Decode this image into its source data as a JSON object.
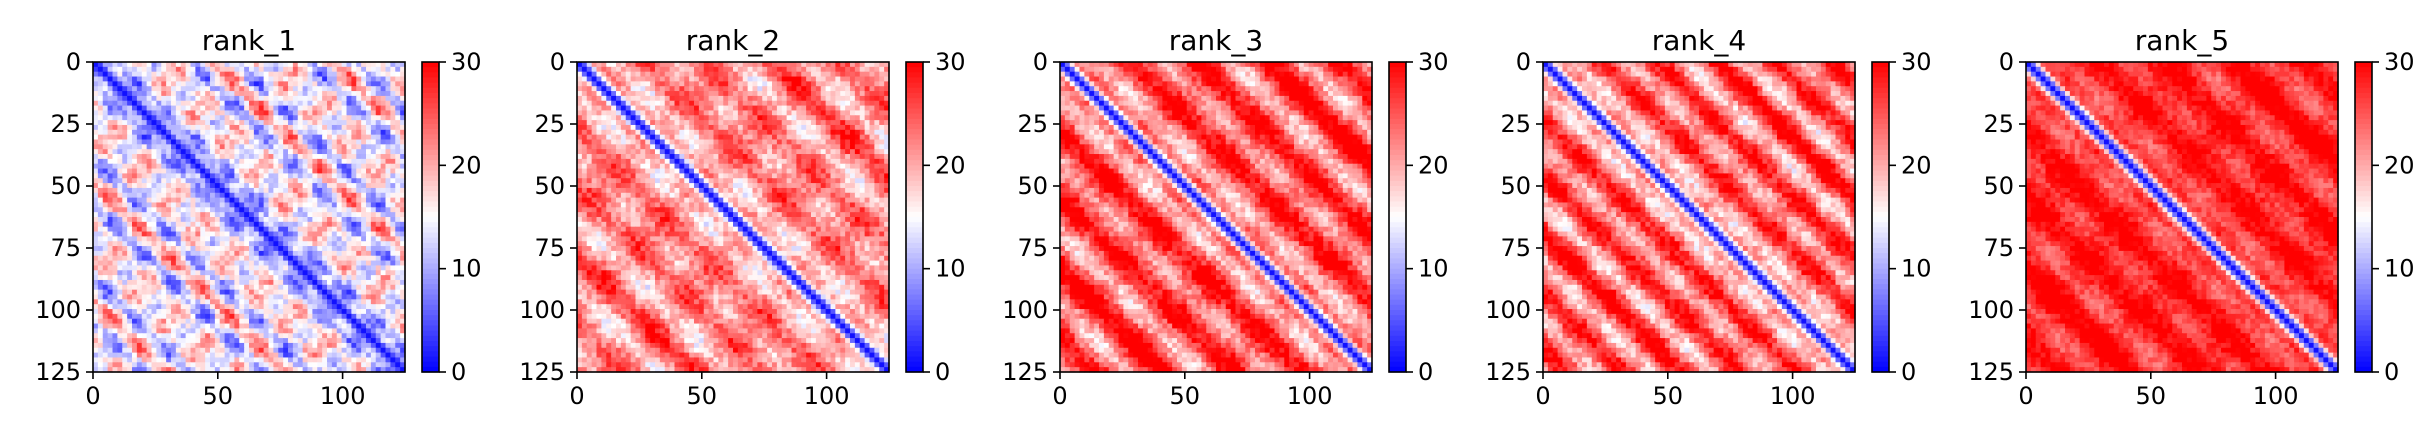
{
  "chart_data": [
    {
      "type": "heatmap",
      "title": "rank_1",
      "x_ticks": [
        "0",
        "50",
        "100"
      ],
      "y_ticks": [
        "0",
        "25",
        "50",
        "75",
        "100",
        "125"
      ],
      "xlim": [
        0,
        125
      ],
      "ylim": [
        125,
        0
      ],
      "colormap": "bwr",
      "colorbar": {
        "range": [
          0,
          30
        ],
        "ticks": [
          "0",
          "10",
          "20",
          "30"
        ]
      },
      "grid": false
    },
    {
      "type": "heatmap",
      "title": "rank_2",
      "x_ticks": [
        "0",
        "50",
        "100"
      ],
      "y_ticks": [
        "0",
        "25",
        "50",
        "75",
        "100",
        "125"
      ],
      "xlim": [
        0,
        125
      ],
      "ylim": [
        125,
        0
      ],
      "colormap": "bwr",
      "colorbar": {
        "range": [
          0,
          30
        ],
        "ticks": [
          "0",
          "10",
          "20",
          "30"
        ]
      },
      "grid": false
    },
    {
      "type": "heatmap",
      "title": "rank_3",
      "x_ticks": [
        "0",
        "50",
        "100"
      ],
      "y_ticks": [
        "0",
        "25",
        "50",
        "75",
        "100",
        "125"
      ],
      "xlim": [
        0,
        125
      ],
      "ylim": [
        125,
        0
      ],
      "colormap": "bwr",
      "colorbar": {
        "range": [
          0,
          30
        ],
        "ticks": [
          "0",
          "10",
          "20",
          "30"
        ]
      },
      "grid": false
    },
    {
      "type": "heatmap",
      "title": "rank_4",
      "x_ticks": [
        "0",
        "50",
        "100"
      ],
      "y_ticks": [
        "0",
        "25",
        "50",
        "75",
        "100",
        "125"
      ],
      "xlim": [
        0,
        125
      ],
      "ylim": [
        125,
        0
      ],
      "colormap": "bwr",
      "colorbar": {
        "range": [
          0,
          30
        ],
        "ticks": [
          "0",
          "10",
          "20",
          "30"
        ]
      },
      "grid": false
    },
    {
      "type": "heatmap",
      "title": "rank_5",
      "x_ticks": [
        "0",
        "50",
        "100"
      ],
      "y_ticks": [
        "0",
        "25",
        "50",
        "75",
        "100",
        "125"
      ],
      "xlim": [
        0,
        125
      ],
      "ylim": [
        125,
        0
      ],
      "colormap": "bwr",
      "colorbar": {
        "range": [
          0,
          30
        ],
        "ticks": [
          "0",
          "10",
          "20",
          "30"
        ]
      },
      "grid": false
    }
  ],
  "colors": {
    "low": "#0000ff",
    "mid": "#ffffff",
    "high": "#ff0000"
  }
}
